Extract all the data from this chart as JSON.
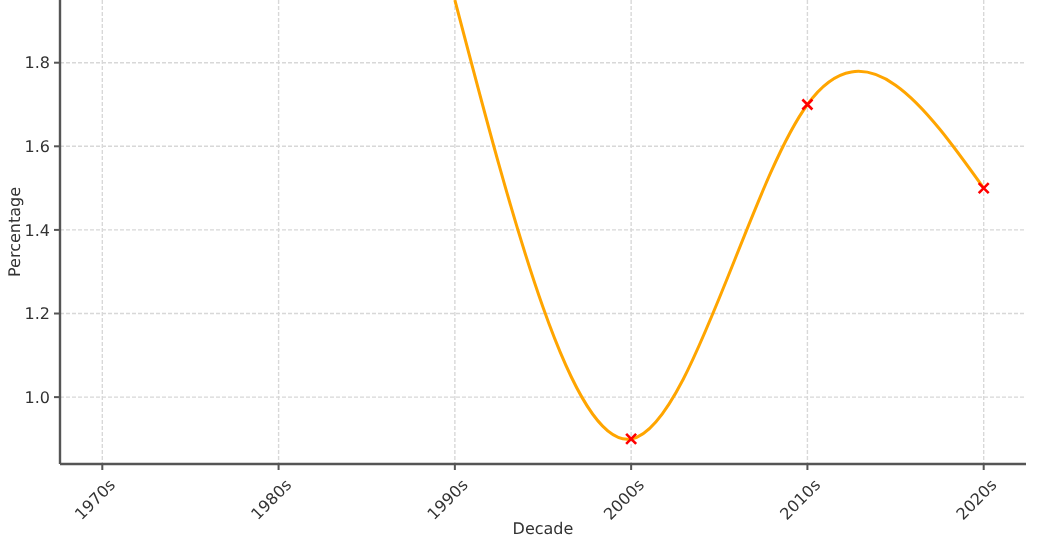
{
  "chart_data": {
    "type": "line",
    "xlabel": "Decade",
    "ylabel": "Percentage",
    "categories": [
      "1970s",
      "1980s",
      "1990s",
      "2000s",
      "2010s",
      "2020s"
    ],
    "series": [
      {
        "color": "#ffa500",
        "marker": "none",
        "values": [
          null,
          null,
          1.95,
          0.9,
          1.7,
          1.5
        ]
      },
      {
        "type": "scatter",
        "color": "#ff0000",
        "marker": "cross",
        "values": [
          null,
          null,
          null,
          0.9,
          1.7,
          1.5
        ]
      }
    ],
    "ylim": [
      0.84,
      1.95
    ],
    "yticks": [
      {
        "value": 1,
        "label": "1.0"
      },
      {
        "value": 1.2,
        "label": "1.2"
      },
      {
        "value": 1.4,
        "label": "1.4"
      },
      {
        "value": 1.6,
        "label": "1.6"
      },
      {
        "value": 1.8,
        "label": "1.8"
      }
    ],
    "grid": true
  }
}
